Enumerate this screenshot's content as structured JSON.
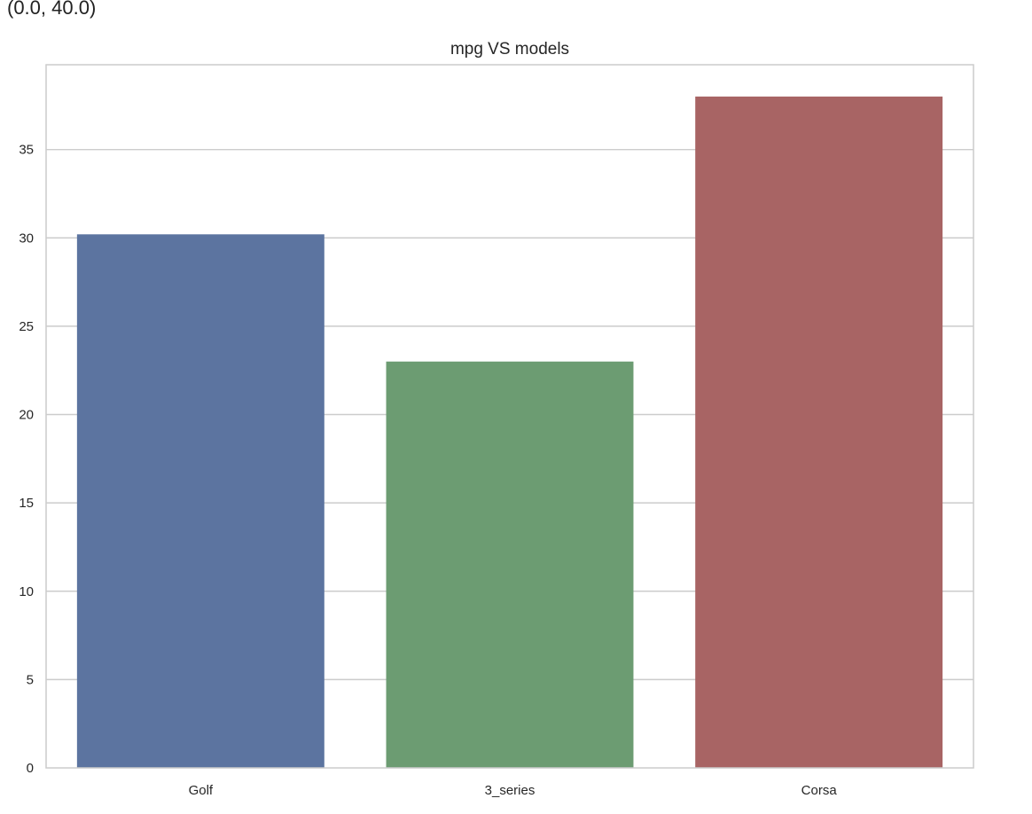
{
  "top_cutoff_text": "(0.0, 40.0)",
  "chart_data": {
    "type": "bar",
    "title": "mpg VS models",
    "xlabel": "",
    "ylabel": "",
    "categories": [
      "Golf",
      "3_series",
      "Corsa"
    ],
    "values": [
      30.2,
      23.0,
      38.0
    ],
    "colors": [
      "#5c74a0",
      "#6c9c72",
      "#a86464"
    ],
    "ylim": [
      0,
      39.8
    ],
    "yticks": [
      0,
      5,
      10,
      15,
      20,
      25,
      30,
      35
    ],
    "grid": "horizontal",
    "background": "#ffffff",
    "frame_color": "#cccccc",
    "grid_color": "#cccccc"
  }
}
